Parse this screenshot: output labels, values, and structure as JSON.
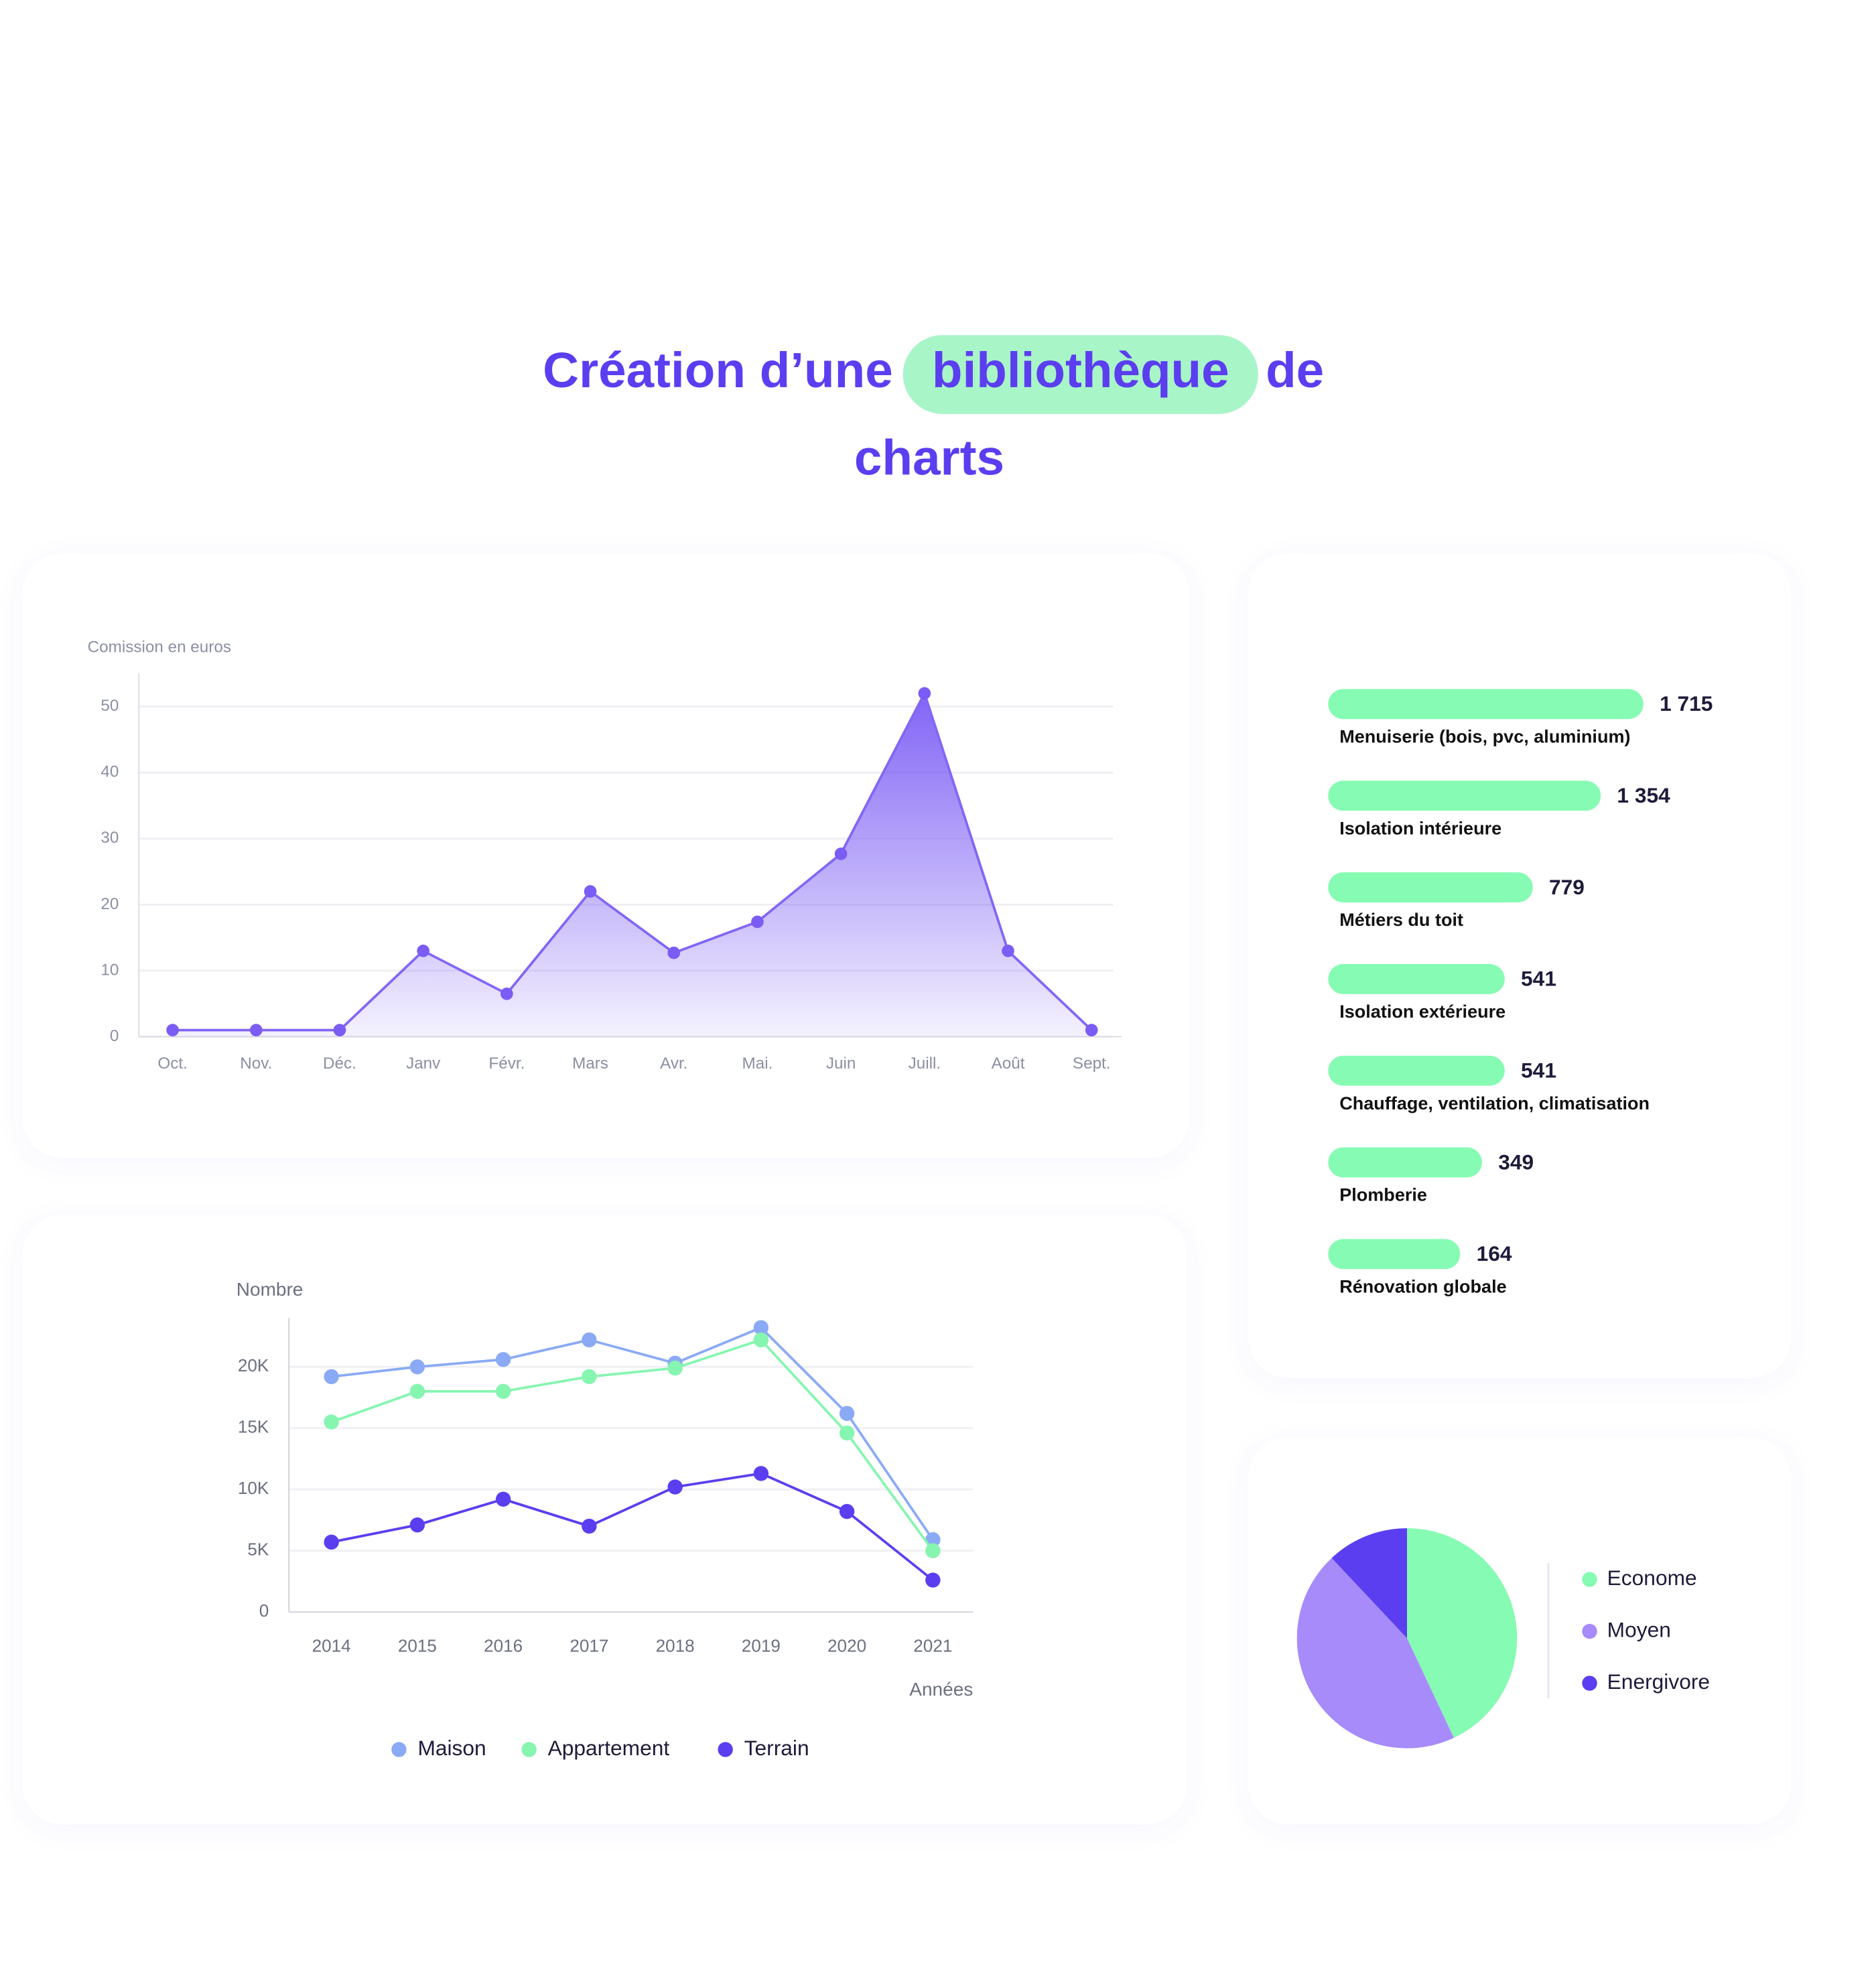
{
  "header": {
    "title_start": "Création d’une",
    "title_highlight": "bibliothèque",
    "title_end": "de",
    "title_line2": "charts"
  },
  "chart_data": [
    {
      "type": "area",
      "y_label": "Comission en euros",
      "color": "#7b5cf5",
      "categories": [
        "Oct.",
        "Nov.",
        "Déc.",
        "Janv",
        "Févr.",
        "Mars",
        "Avr.",
        "Mai.",
        "Juin",
        "Juill.",
        "Août",
        "Sept."
      ],
      "values": [
        1,
        1,
        1,
        13,
        6.5,
        22,
        12.7,
        17.4,
        27.7,
        52,
        13,
        1
      ],
      "ylim": [
        0,
        55
      ],
      "yticks": [
        0,
        10,
        20,
        30,
        40,
        50
      ],
      "grid": true
    },
    {
      "type": "hbar",
      "color": "#86fbb3",
      "categories": [
        "Menuiserie (bois, pvc, aluminium)",
        "Isolation intérieure",
        "Métiers du toit",
        "Isolation extérieure",
        "Chauffage, ventilation, climatisation",
        "Plomberie",
        "Rénovation globale"
      ],
      "values": [
        1715,
        1354,
        779,
        541,
        541,
        349,
        164
      ],
      "value_labels": [
        "1 715",
        "1 354",
        "779",
        "541",
        "541",
        "349",
        "164"
      ]
    },
    {
      "type": "line",
      "y_label": "Nombre",
      "x_label": "Années",
      "x": [
        2014,
        2015,
        2016,
        2017,
        2018,
        2019,
        2020,
        2021
      ],
      "series": [
        {
          "name": "Maison",
          "color": "#8aaaf5",
          "values": [
            19200,
            20000,
            20600,
            22200,
            20300,
            23200,
            16200,
            5900
          ]
        },
        {
          "name": "Appartement",
          "color": "#86f5b0",
          "values": [
            15500,
            18000,
            18000,
            19200,
            19900,
            22200,
            14600,
            5000
          ]
        },
        {
          "name": "Terrain",
          "color": "#5b3ef0",
          "values": [
            5700,
            7100,
            9200,
            7000,
            10200,
            11300,
            8200,
            2600
          ]
        }
      ],
      "ylim": [
        0,
        24000
      ],
      "yticks": [
        0,
        {
          "value": 5000,
          "label": "5K"
        },
        {
          "value": 10000,
          "label": "10K"
        },
        {
          "value": 15000,
          "label": "15K"
        },
        {
          "value": 20000,
          "label": "20K"
        }
      ],
      "grid": true,
      "legend": "bottom"
    },
    {
      "type": "pie",
      "legend": "right",
      "series": [
        {
          "name": "Econome",
          "color": "#86fbb3",
          "values": [
            43
          ]
        },
        {
          "name": "Moyen",
          "color": "#a78bfa",
          "values": [
            45
          ]
        },
        {
          "name": "Energivore",
          "color": "#5b3ef0",
          "values": [
            12
          ]
        }
      ]
    }
  ]
}
